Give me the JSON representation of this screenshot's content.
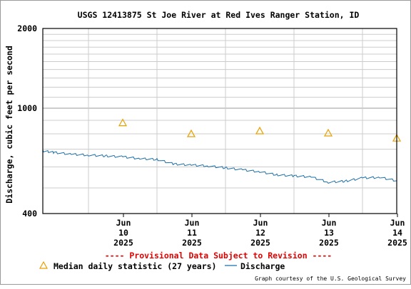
{
  "chart_data": {
    "type": "line",
    "title": "USGS 12413875 St Joe River at Red Ives Ranger Station, ID",
    "ylabel": "Discharge, cubic feet per second",
    "xlabel": "",
    "y_scale": "log",
    "ylim": [
      400,
      2000
    ],
    "y_ticks": [
      "400",
      "1000",
      "2000"
    ],
    "x_range_days": [
      "2025-06-09T08:00",
      "2025-06-14T12:00"
    ],
    "x_ticks": [
      {
        "date": "2025-06-10",
        "lines": [
          "Jun",
          "10",
          "2025"
        ]
      },
      {
        "date": "2025-06-11",
        "lines": [
          "Jun",
          "11",
          "2025"
        ]
      },
      {
        "date": "2025-06-12",
        "lines": [
          "Jun",
          "12",
          "2025"
        ]
      },
      {
        "date": "2025-06-13",
        "lines": [
          "Jun",
          "13",
          "2025"
        ]
      },
      {
        "date": "2025-06-14",
        "lines": [
          "Jun",
          "14",
          "2025"
        ]
      }
    ],
    "grid": true,
    "series": [
      {
        "name": "Median daily statistic (27 years)",
        "marker": "triangle",
        "color": "#e8a000",
        "x": [
          "2025-06-10T12:00",
          "2025-06-11T12:00",
          "2025-06-12T12:00",
          "2025-06-13T12:00",
          "2025-06-14T12:00"
        ],
        "values": [
          880,
          800,
          820,
          805,
          770
        ]
      },
      {
        "name": "Discharge",
        "marker": "line",
        "color": "#1a6fa8",
        "x": [
          "2025-06-09T08:00",
          "2025-06-09T12:00",
          "2025-06-09T18:00",
          "2025-06-10T00:00",
          "2025-06-10T06:00",
          "2025-06-10T12:00",
          "2025-06-10T18:00",
          "2025-06-11T00:00",
          "2025-06-11T06:00",
          "2025-06-11T12:00",
          "2025-06-11T18:00",
          "2025-06-12T00:00",
          "2025-06-12T06:00",
          "2025-06-12T12:00",
          "2025-06-12T18:00",
          "2025-06-13T00:00",
          "2025-06-13T06:00",
          "2025-06-13T12:00",
          "2025-06-13T18:00",
          "2025-06-14T00:00",
          "2025-06-14T06:00",
          "2025-06-14T12:00"
        ],
        "values": [
          690,
          680,
          670,
          665,
          660,
          655,
          645,
          640,
          615,
          610,
          605,
          595,
          585,
          575,
          560,
          555,
          550,
          525,
          530,
          545,
          548,
          532
        ]
      }
    ],
    "annotation": "---- Provisional Data Subject to Revision ----",
    "legend_items": [
      {
        "symbol": "triangle",
        "label": "Median daily statistic (27 years)"
      },
      {
        "symbol": "line",
        "label": "Discharge"
      }
    ],
    "credit": "Graph courtesy of the U.S. Geological Survey"
  }
}
